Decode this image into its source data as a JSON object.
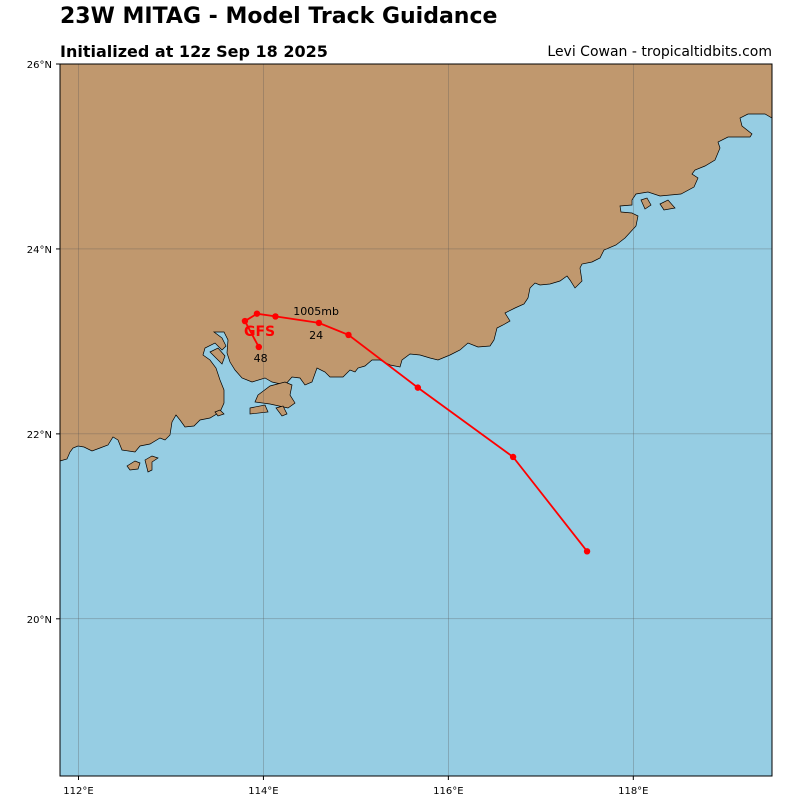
{
  "header": {
    "title": "23W MITAG - Model Track Guidance",
    "subtitle": "Initialized at 12z Sep 18 2025",
    "credit": "Levi Cowan - tropicaltidbits.com"
  },
  "map": {
    "lon_range": [
      111.8,
      119.5
    ],
    "lat_range": [
      18.3,
      26.0
    ],
    "ocean_color": "#96cde3",
    "land_color": "#c0986e",
    "grid_color": "#555555",
    "lon_ticks": [
      {
        "value": 112,
        "label": "112°E"
      },
      {
        "value": 114,
        "label": "114°E"
      },
      {
        "value": 116,
        "label": "116°E"
      },
      {
        "value": 118,
        "label": "118°E"
      }
    ],
    "lat_ticks": [
      {
        "value": 20,
        "label": "20°N"
      },
      {
        "value": 22,
        "label": "22°N"
      },
      {
        "value": 24,
        "label": "24°N"
      },
      {
        "value": 26,
        "label": "26°N"
      }
    ]
  },
  "chart_data": {
    "type": "map-track",
    "tracks": [
      {
        "model": "GFS",
        "color": "#ff0000",
        "points": [
          {
            "lon": 117.5,
            "lat": 20.73
          },
          {
            "lon": 116.7,
            "lat": 21.75
          },
          {
            "lon": 115.67,
            "lat": 22.5
          },
          {
            "lon": 114.92,
            "lat": 23.07
          },
          {
            "lon": 114.6,
            "lat": 23.2
          },
          {
            "lon": 114.13,
            "lat": 23.27
          },
          {
            "lon": 113.93,
            "lat": 23.3
          },
          {
            "lon": 113.8,
            "lat": 23.22
          },
          {
            "lon": 113.95,
            "lat": 22.94
          }
        ]
      }
    ],
    "annotations": [
      {
        "text": "1005mb",
        "lon": 114.57,
        "lat": 23.33
      },
      {
        "text": "24",
        "lon": 114.57,
        "lat": 23.07
      },
      {
        "text": "48",
        "lon": 113.97,
        "lat": 22.82
      }
    ]
  }
}
